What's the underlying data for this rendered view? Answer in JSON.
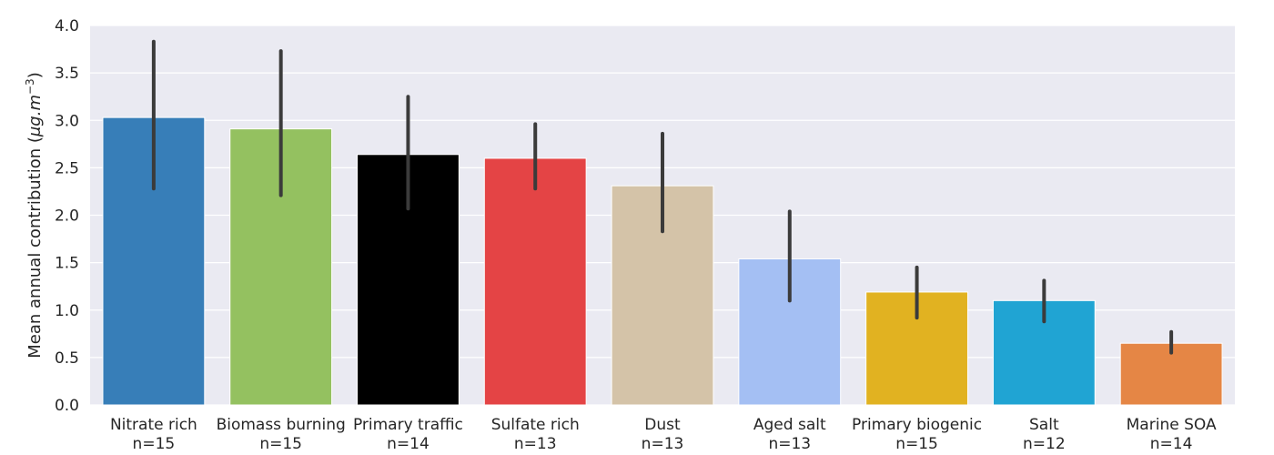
{
  "chart_data": {
    "type": "bar",
    "title": "",
    "xlabel": "",
    "ylabel": "Mean annual contribution (",
    "ylabel_unit": "μg.m",
    "ylabel_exponent": "−3",
    "ylabel_close": ")",
    "ylim": [
      0,
      4.0
    ],
    "yticks": [
      "0.0",
      "0.5",
      "1.0",
      "1.5",
      "2.0",
      "2.5",
      "3.0",
      "3.5",
      "4.0"
    ],
    "grid": true,
    "background_color": "#eaeaf2",
    "categories": [
      "Nitrate rich",
      "Biomass burning",
      "Primary traffic",
      "Sulfate rich",
      "Dust",
      "Aged salt",
      "Primary biogenic",
      "Salt",
      "Marine SOA"
    ],
    "counts": [
      "n=15",
      "n=15",
      "n=14",
      "n=13",
      "n=13",
      "n=13",
      "n=15",
      "n=12",
      "n=14"
    ],
    "values": [
      3.03,
      2.91,
      2.64,
      2.6,
      2.31,
      1.54,
      1.19,
      1.1,
      0.65
    ],
    "error_low": [
      2.28,
      2.21,
      2.07,
      2.28,
      1.83,
      1.1,
      0.92,
      0.88,
      0.55
    ],
    "error_high": [
      3.83,
      3.73,
      3.25,
      2.96,
      2.86,
      2.04,
      1.45,
      1.31,
      0.77
    ],
    "colors": [
      "#377eb8",
      "#94c160",
      "#000000",
      "#e44445",
      "#d4c3a8",
      "#a4bff3",
      "#e1b221",
      "#20a4d3",
      "#e58645"
    ]
  }
}
